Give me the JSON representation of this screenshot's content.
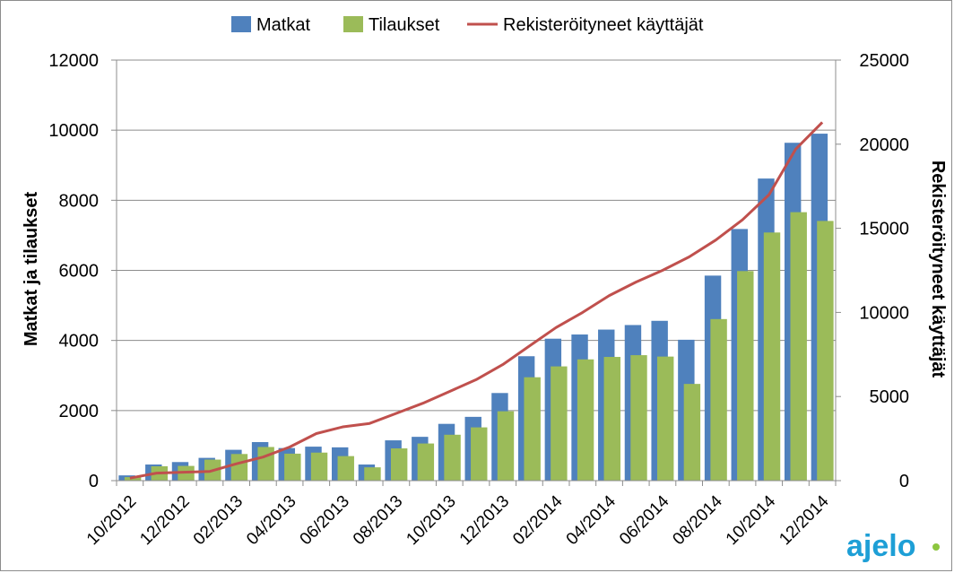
{
  "chart_data": {
    "type": "bar",
    "categories": [
      "10/2012",
      "11/2012",
      "12/2012",
      "01/2013",
      "02/2013",
      "03/2013",
      "04/2013",
      "05/2013",
      "06/2013",
      "07/2013",
      "08/2013",
      "09/2013",
      "10/2013",
      "11/2013",
      "12/2013",
      "01/2014",
      "02/2014",
      "03/2014",
      "04/2014",
      "05/2014",
      "06/2014",
      "07/2014",
      "08/2014",
      "09/2014",
      "10/2014",
      "11/2014",
      "12/2014"
    ],
    "x_tick_labels": [
      "10/2012",
      "12/2012",
      "02/2013",
      "04/2013",
      "06/2013",
      "08/2013",
      "10/2013",
      "12/2013",
      "02/2014",
      "04/2014",
      "06/2014",
      "08/2014",
      "10/2014",
      "12/2014"
    ],
    "series": [
      {
        "name": "Matkat",
        "type": "bar",
        "axis": "left",
        "color": "#4f81bd",
        "values": [
          150,
          460,
          530,
          650,
          880,
          1100,
          930,
          970,
          950,
          460,
          1150,
          1250,
          1620,
          1820,
          2500,
          3550,
          4050,
          4170,
          4310,
          4440,
          4560,
          4020,
          5850,
          7180,
          8620,
          9640,
          9900
        ]
      },
      {
        "name": "Tilaukset",
        "type": "bar",
        "axis": "left",
        "color": "#9bbb59",
        "values": [
          100,
          410,
          420,
          600,
          760,
          960,
          770,
          800,
          700,
          380,
          920,
          1060,
          1310,
          1520,
          1980,
          2950,
          3260,
          3460,
          3530,
          3580,
          3540,
          2760,
          4610,
          5980,
          7080,
          7660,
          7410
        ]
      },
      {
        "name": "Rekisteröityneet käyttäjät",
        "type": "line",
        "axis": "right",
        "color": "#c0504d",
        "values": [
          150,
          450,
          500,
          550,
          1000,
          1400,
          2000,
          2800,
          3200,
          3400,
          4000,
          4600,
          5300,
          6000,
          6900,
          8000,
          9100,
          10000,
          11000,
          11800,
          12500,
          13300,
          14300,
          15500,
          17000,
          19700,
          21300
        ]
      }
    ],
    "ylabel": "Matkat ja tilaukset",
    "y2label": "Rekisteröityneet käyttäjät",
    "ylim": [
      0,
      12000
    ],
    "yticks": [
      0,
      2000,
      4000,
      6000,
      8000,
      10000,
      12000
    ],
    "y2lim": [
      0,
      25000
    ],
    "y2ticks": [
      0,
      5000,
      10000,
      15000,
      20000,
      25000
    ],
    "grid": true,
    "legend_position": "top-center"
  },
  "logo": {
    "text": "ajelo"
  }
}
